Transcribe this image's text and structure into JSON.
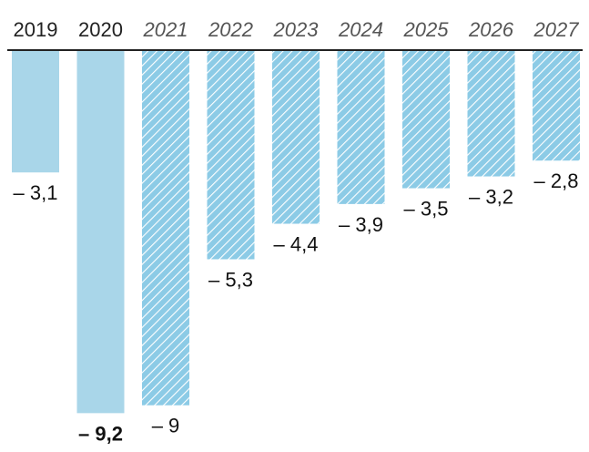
{
  "chart_data": {
    "type": "bar",
    "categories": [
      "2019",
      "2020",
      "2021",
      "2022",
      "2023",
      "2024",
      "2025",
      "2026",
      "2027"
    ],
    "values": [
      -3.1,
      -9.2,
      -9.0,
      -5.3,
      -4.4,
      -3.9,
      -3.5,
      -3.2,
      -2.8
    ],
    "value_labels": [
      "– 3,1",
      "– 9,2",
      "– 9",
      "– 5,3",
      "– 4,4",
      "– 3,9",
      "– 3,5",
      "– 3,2",
      "– 2,8"
    ],
    "projected": [
      false,
      false,
      true,
      true,
      true,
      true,
      true,
      true,
      true
    ],
    "bold_labels": [
      false,
      true,
      false,
      false,
      false,
      false,
      false,
      false,
      false
    ],
    "ylim": [
      -9.5,
      0
    ],
    "title": "",
    "xlabel": "",
    "ylabel": "",
    "grid": false,
    "legend": "none",
    "colors": {
      "actual": "#a9d6e9",
      "projected_fill": "#8ccbe6",
      "projected_hatch": "#ffffff",
      "baseline": "#222222",
      "text": "#111111"
    }
  }
}
